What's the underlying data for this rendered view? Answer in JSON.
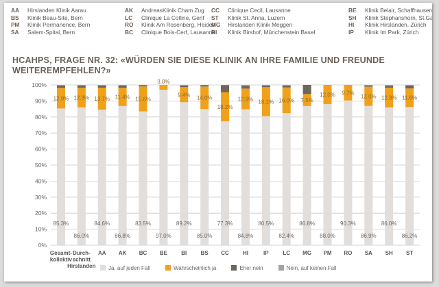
{
  "hospital_legend": [
    {
      "code": "AA",
      "name": "Hirslanden Klinik Aarau"
    },
    {
      "code": "BS",
      "name": "Klinik Beau-Site, Bern"
    },
    {
      "code": "PM",
      "name": "Klinik Permanence, Bern"
    },
    {
      "code": "SA",
      "name": "Salem-Spital, Bern"
    },
    {
      "code": "AK",
      "name": "AndreasKlinik Cham Zug"
    },
    {
      "code": "LC",
      "name": "Clinique La Colline, Genf"
    },
    {
      "code": "RO",
      "name": "Klinik Am Rosenberg, Heiden"
    },
    {
      "code": "BC",
      "name": "Clinique Bois-Cerf, Lausanne"
    },
    {
      "code": "CC",
      "name": "Clinique Cecil, Lausanne"
    },
    {
      "code": "ST",
      "name": "Klinik St. Anna, Luzern"
    },
    {
      "code": "MG",
      "name": "Hirslanden Klinik Meggen"
    },
    {
      "code": "BI",
      "name": "Klinik Birshof, Münchenstein Basel"
    },
    {
      "code": "BE",
      "name": "Klinik Belair, Schaffhausen"
    },
    {
      "code": "SH",
      "name": "Klinik Stephanshorn, St.Gallen"
    },
    {
      "code": "HI",
      "name": "Klinik Hirslanden, Zürich"
    },
    {
      "code": "IP",
      "name": "Klinik Im Park, Zürich"
    }
  ],
  "colors": {
    "ja": "#e1dedb",
    "wahrscheinlich": "#f0a11b",
    "eher_nein": "#6e655d",
    "nein": "#a8a29c",
    "grid": "#c8c8c8",
    "title": "#6b6159",
    "label": "#666666"
  },
  "chart_data": {
    "type": "bar",
    "stacked": true,
    "title": "HCAHPS, FRAGE NR. 32: «WÜRDEN SIE DIESE KLINIK AN IHRE FAMILIE UND FREUNDE WEITEREMPFEHLEN?»",
    "xlabel": "",
    "ylabel": "",
    "ylim": [
      0,
      100
    ],
    "yticks": [
      "0%",
      "10%",
      "20%",
      "30%",
      "40%",
      "50%",
      "60%",
      "70%",
      "80%",
      "90%",
      "100%"
    ],
    "categories": [
      [
        "Gesamt-",
        "kollektiv"
      ],
      [
        "Durch-",
        "schnitt",
        "Hirslanden"
      ],
      [
        "AA"
      ],
      [
        "AK"
      ],
      [
        "BC"
      ],
      [
        "BE"
      ],
      [
        "BI"
      ],
      [
        "BS"
      ],
      [
        "CC"
      ],
      [
        "HI"
      ],
      [
        "IP"
      ],
      [
        "LC"
      ],
      [
        "MG"
      ],
      [
        "PM"
      ],
      [
        "RO"
      ],
      [
        "SA"
      ],
      [
        "SH"
      ],
      [
        "ST"
      ]
    ],
    "series": [
      {
        "name": "Ja, auf jeden Fall",
        "key": "ja",
        "values": [
          85.3,
          86.0,
          84.6,
          86.8,
          83.5,
          97.0,
          89.2,
          85.0,
          77.3,
          84.8,
          80.5,
          82.4,
          86.8,
          88.0,
          90.3,
          86.9,
          86.0,
          86.2
        ],
        "labels": [
          "85.3%",
          "86.0%",
          "84.6%",
          "86.8%",
          "83.5%",
          "97.0%",
          "89.2%",
          "85.0%",
          "77.3%",
          "84.8%",
          "80.5%",
          "82.4%",
          "86.8%",
          "88.0%",
          "90.3%",
          "86.9%",
          "86.0%",
          "86.2%"
        ]
      },
      {
        "name": "Wahrscheinlich ja",
        "key": "wahrscheinlich",
        "values": [
          12.9,
          12.3,
          13.7,
          11.4,
          15.6,
          3.0,
          9.4,
          14.0,
          18.2,
          12.9,
          18.1,
          16.0,
          7.5,
          12.0,
          9.7,
          12.0,
          12.3,
          11.6
        ],
        "labels": [
          "12.9%",
          "12.3%",
          "13.7%",
          "11.4%",
          "15.6%",
          "3.0%",
          "9.4%",
          "14.0%",
          "18.2%",
          "12.9%",
          "18.1%",
          "16.0%",
          "7.5%",
          "12.0%",
          "9.7%",
          "12.0%",
          "12.3%",
          "11.6%"
        ]
      },
      {
        "name": "Eher nein",
        "key": "eher_nein",
        "values": [
          1.5,
          1.4,
          1.3,
          1.5,
          0.7,
          0,
          1.0,
          0.8,
          4.3,
          1.8,
          1.0,
          1.2,
          5.7,
          0,
          0,
          0.8,
          1.2,
          1.8
        ]
      },
      {
        "name": "Nein, auf keinen Fall",
        "key": "nein",
        "values": [
          0.3,
          0.3,
          0.4,
          0.3,
          0.2,
          0,
          0.4,
          0.2,
          0.2,
          0.5,
          0.4,
          0.4,
          0,
          0,
          0,
          0.3,
          0.5,
          0.4
        ]
      }
    ],
    "legend": [
      "Ja, auf jeden Fall",
      "Wahrscheinlich ja",
      "Eher nein",
      "Nein, auf keinen Fall"
    ]
  }
}
